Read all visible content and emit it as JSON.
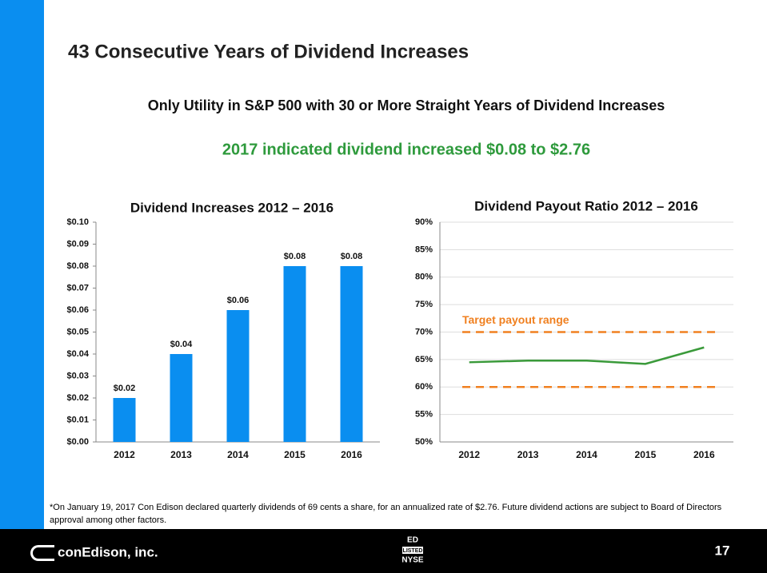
{
  "slide": {
    "title": "43 Consecutive Years of Dividend Increases",
    "subtitle": "Only Utility in S&P 500 with 30 or More Straight Years of Dividend Increases",
    "highlight": "2017 indicated dividend increased $0.08 to $2.76",
    "footnote": "*On January 19, 2017 Con Edison declared quarterly dividends of 69 cents a share, for an annualized rate of $2.76. Future dividend actions are subject to Board of Directors approval among other factors.",
    "company": "conEdison, inc.",
    "listing": [
      "ED",
      "LISTED",
      "NYSE"
    ],
    "page": "17"
  },
  "chart_data": [
    {
      "type": "bar",
      "title": "Dividend Increases  2012 – 2016",
      "categories": [
        "2012",
        "2013",
        "2014",
        "2015",
        "2016"
      ],
      "values": [
        0.02,
        0.04,
        0.06,
        0.08,
        0.08
      ],
      "value_labels": [
        "$0.02",
        "$0.04",
        "$0.06",
        "$0.08",
        "$0.08"
      ],
      "color": "#0a8ef0",
      "ylim": [
        0,
        0.1
      ],
      "yticks": [
        {
          "value": 0,
          "label": "$0.00"
        },
        {
          "value": 0.01,
          "label": "$0.01"
        },
        {
          "value": 0.02,
          "label": "$0.02"
        },
        {
          "value": 0.03,
          "label": "$0.03"
        },
        {
          "value": 0.04,
          "label": "$0.04"
        },
        {
          "value": 0.05,
          "label": "$0.05"
        },
        {
          "value": 0.06,
          "label": "$0.06"
        },
        {
          "value": 0.07,
          "label": "$0.07"
        },
        {
          "value": 0.08,
          "label": "$0.08"
        },
        {
          "value": 0.09,
          "label": "$0.09"
        },
        {
          "value": 0.1,
          "label": "$0.10"
        }
      ],
      "grid": false
    },
    {
      "type": "line",
      "title": "Dividend Payout Ratio 2012 – 2016",
      "categories": [
        "2012",
        "2013",
        "2014",
        "2015",
        "2016"
      ],
      "series": [
        {
          "color": "#3a9a3a",
          "values": [
            64.5,
            64.8,
            64.8,
            64.2,
            67.2
          ]
        }
      ],
      "ylim": [
        50,
        90
      ],
      "yticks": [
        {
          "value": 50,
          "label": "50%"
        },
        {
          "value": 55,
          "label": "55%"
        },
        {
          "value": 60,
          "label": "60%"
        },
        {
          "value": 65,
          "label": "65%"
        },
        {
          "value": 70,
          "label": "70%"
        },
        {
          "value": 75,
          "label": "75%"
        },
        {
          "value": 80,
          "label": "80%"
        },
        {
          "value": 85,
          "label": "85%"
        },
        {
          "value": 90,
          "label": "90%"
        }
      ],
      "grid": true,
      "reference_lines": [
        {
          "value": 70,
          "color": "#f08020"
        },
        {
          "value": 60,
          "color": "#f08020"
        }
      ],
      "annotation": "Target payout range"
    }
  ]
}
